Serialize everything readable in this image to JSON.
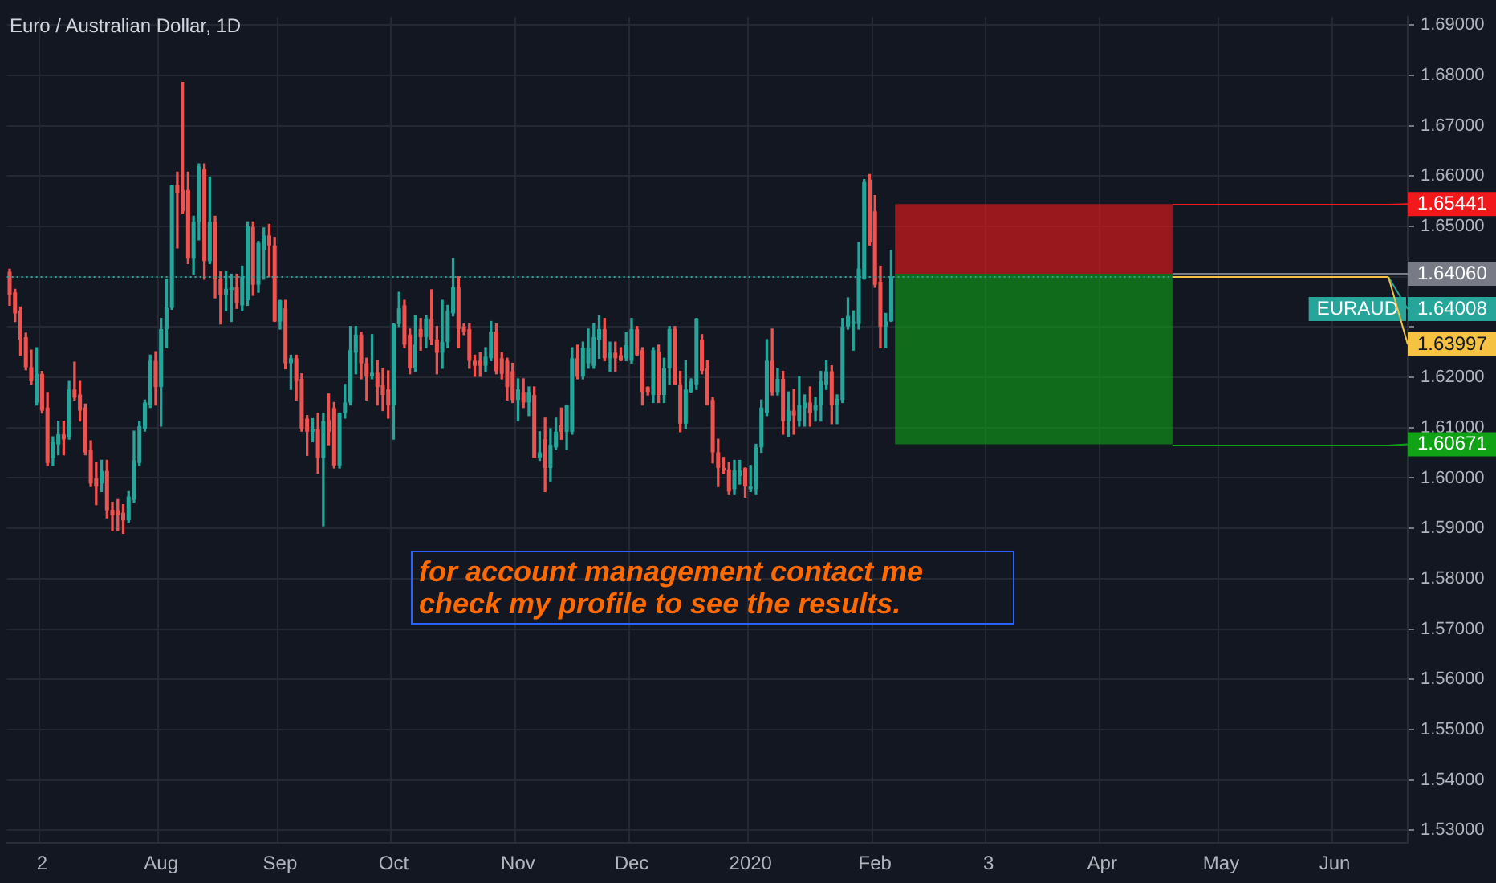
{
  "chart_data": {
    "type": "candlestick",
    "title": "Euro / Australian Dollar, 1D",
    "categories": [
      null,
      null,
      null,
      null,
      null,
      null,
      "2",
      null,
      null,
      null,
      null,
      null,
      null,
      null,
      null,
      null,
      null,
      null,
      null,
      null,
      null,
      null,
      null,
      null,
      null,
      null,
      null,
      null,
      "Aug",
      null,
      null,
      null,
      null,
      null,
      null,
      null,
      null,
      null,
      null,
      null,
      null,
      null,
      null,
      null,
      null,
      null,
      null,
      null,
      null,
      null,
      "Sep",
      null,
      null,
      null,
      null,
      null,
      null,
      null,
      null,
      null,
      null,
      null,
      null,
      null,
      null,
      null,
      null,
      null,
      null,
      null,
      null,
      "Oct",
      null,
      null,
      null,
      null,
      null,
      null,
      null,
      null,
      null,
      null,
      null,
      null,
      null,
      null,
      null,
      null,
      null,
      null,
      null,
      null,
      null,
      null,
      "Nov",
      null,
      null,
      null,
      null,
      null,
      null,
      null,
      null,
      null,
      null,
      null,
      null,
      null,
      null,
      null,
      null,
      null,
      null,
      null,
      null,
      "Dec",
      null,
      null,
      null,
      null,
      null,
      null,
      null,
      null,
      null,
      null,
      null,
      null,
      null,
      null,
      null,
      null,
      null,
      null,
      null,
      null,
      null,
      "2020",
      null,
      null,
      null,
      null,
      null,
      null,
      null,
      null,
      null,
      null,
      null,
      null,
      null,
      null,
      null,
      null,
      null,
      null,
      null,
      null,
      null,
      null,
      "Feb",
      null,
      null,
      null,
      null,
      null,
      null,
      null,
      null,
      null,
      null,
      null,
      null,
      null,
      null,
      null,
      null,
      null,
      null,
      null,
      null,
      "3",
      null,
      null,
      null,
      null,
      null,
      null,
      null,
      null,
      null,
      null,
      null,
      null,
      null,
      null,
      null,
      null,
      null,
      null,
      null,
      null,
      "Apr",
      null,
      null,
      null,
      null,
      null,
      null,
      null,
      null,
      null,
      null,
      null,
      null,
      null,
      null,
      null,
      null,
      null,
      null,
      null,
      null,
      null,
      "May",
      null,
      null,
      null,
      null,
      null,
      null,
      null,
      null,
      null,
      null,
      null,
      null,
      null,
      null,
      null,
      null,
      null,
      null,
      null,
      null,
      "Jun",
      null,
      null,
      null,
      null,
      null,
      null,
      null,
      null,
      null,
      null,
      null,
      null,
      null
    ],
    "ohlc": [
      [
        1.641,
        1.6415,
        1.6343,
        1.6364
      ],
      [
        1.6369,
        1.6375,
        1.6311,
        1.6327
      ],
      [
        1.6332,
        1.634,
        1.6244,
        1.6275
      ],
      [
        1.628,
        1.6288,
        1.6215,
        1.622
      ],
      [
        1.622,
        1.6254,
        1.6187,
        1.6192
      ],
      [
        1.615,
        1.6259,
        1.6145,
        1.6207
      ],
      [
        1.6207,
        1.6212,
        1.6129,
        1.6134
      ],
      [
        1.614,
        1.617,
        1.6025,
        1.603
      ],
      [
        1.604,
        1.6082,
        1.6025,
        1.6071
      ],
      [
        1.6067,
        1.6113,
        1.6046,
        1.6087
      ],
      [
        1.6087,
        1.6113,
        1.6046,
        1.6077
      ],
      [
        1.6082,
        1.6192,
        1.6077,
        1.6176
      ],
      [
        1.6176,
        1.623,
        1.6155,
        1.616
      ],
      [
        1.6166,
        1.6192,
        1.6113,
        1.6134
      ],
      [
        1.614,
        1.6147,
        1.6046,
        1.6051
      ],
      [
        1.6056,
        1.6074,
        1.5983,
        1.5989
      ],
      [
        1.5999,
        1.603,
        1.5947,
        1.5983
      ],
      [
        1.5989,
        1.6035,
        1.5973,
        1.6014
      ],
      [
        1.6014,
        1.6035,
        1.5921,
        1.5936
      ],
      [
        1.5937,
        1.5952,
        1.5895,
        1.5926
      ],
      [
        1.5936,
        1.5957,
        1.5895,
        1.5926
      ],
      [
        1.5931,
        1.5947,
        1.589,
        1.5916
      ],
      [
        1.5916,
        1.5973,
        1.5911,
        1.5963
      ],
      [
        1.5957,
        1.6093,
        1.5952,
        1.6035
      ],
      [
        1.603,
        1.6113,
        1.6025,
        1.6103
      ],
      [
        1.6098,
        1.6155,
        1.6093,
        1.615
      ],
      [
        1.6145,
        1.6244,
        1.614,
        1.6233
      ],
      [
        1.6233,
        1.6251,
        1.6145,
        1.6181
      ],
      [
        1.6181,
        1.6317,
        1.6103,
        1.6296
      ],
      [
        1.6296,
        1.6395,
        1.6259,
        1.6338
      ],
      [
        1.6338,
        1.6582,
        1.6335,
        1.6582
      ],
      [
        1.6582,
        1.6608,
        1.6457,
        1.6567
      ],
      [
        1.6572,
        1.6786,
        1.6525,
        1.653
      ],
      [
        1.6572,
        1.6608,
        1.6426,
        1.6436
      ],
      [
        1.6436,
        1.652,
        1.6405,
        1.6509
      ],
      [
        1.6509,
        1.6624,
        1.6473,
        1.6619
      ],
      [
        1.6614,
        1.6624,
        1.6395,
        1.6431
      ],
      [
        1.6431,
        1.6598,
        1.6426,
        1.6509
      ],
      [
        1.6509,
        1.652,
        1.6358,
        1.6395
      ],
      [
        1.6395,
        1.641,
        1.6306,
        1.6363
      ],
      [
        1.6363,
        1.641,
        1.6332,
        1.6376
      ],
      [
        1.6374,
        1.6405,
        1.6311,
        1.6379
      ],
      [
        1.6379,
        1.6405,
        1.6337,
        1.6348
      ],
      [
        1.6343,
        1.6421,
        1.6332,
        1.64
      ],
      [
        1.6353,
        1.6509,
        1.6343,
        1.65
      ],
      [
        1.6499,
        1.6509,
        1.6363,
        1.6384
      ],
      [
        1.6384,
        1.647,
        1.6369,
        1.6467
      ],
      [
        1.6452,
        1.6497,
        1.6395,
        1.6482
      ],
      [
        1.6482,
        1.6504,
        1.64,
        1.6462
      ],
      [
        1.6462,
        1.6478,
        1.6311,
        1.6311
      ],
      [
        1.6311,
        1.6353,
        1.6296,
        1.6353
      ],
      [
        1.6337,
        1.6353,
        1.6217,
        1.6228
      ],
      [
        1.6228,
        1.6244,
        1.6176,
        1.6238
      ],
      [
        1.6238,
        1.6244,
        1.6155,
        1.6192
      ],
      [
        1.6197,
        1.6207,
        1.6093,
        1.6098
      ],
      [
        1.6118,
        1.6124,
        1.6045,
        1.6092
      ],
      [
        1.6092,
        1.6118,
        1.6072,
        1.6097
      ],
      [
        1.6097,
        1.6129,
        1.6009,
        1.604
      ],
      [
        1.604,
        1.6129,
        1.5905,
        1.6113
      ],
      [
        1.6115,
        1.6167,
        1.6066,
        1.6092
      ],
      [
        1.6139,
        1.615,
        1.602,
        1.6025
      ],
      [
        1.6025,
        1.6129,
        1.602,
        1.6129
      ],
      [
        1.6129,
        1.6186,
        1.6119,
        1.615
      ],
      [
        1.615,
        1.6301,
        1.6145,
        1.6254
      ],
      [
        1.6249,
        1.6301,
        1.6207,
        1.6285
      ],
      [
        1.6285,
        1.629,
        1.6197,
        1.6228
      ],
      [
        1.6228,
        1.6238,
        1.6155,
        1.6202
      ],
      [
        1.6202,
        1.6285,
        1.6197,
        1.6209
      ],
      [
        1.6209,
        1.6233,
        1.6145,
        1.6181
      ],
      [
        1.6184,
        1.6218,
        1.6134,
        1.6165
      ],
      [
        1.6176,
        1.6213,
        1.6119,
        1.6145
      ],
      [
        1.6145,
        1.6306,
        1.6077,
        1.6306
      ],
      [
        1.6306,
        1.6369,
        1.6301,
        1.6337
      ],
      [
        1.6343,
        1.6353,
        1.6259,
        1.6265
      ],
      [
        1.6285,
        1.6296,
        1.6207,
        1.6218
      ],
      [
        1.6218,
        1.6322,
        1.6212,
        1.6265
      ],
      [
        1.6296,
        1.6317,
        1.6254,
        1.628
      ],
      [
        1.628,
        1.6322,
        1.6259,
        1.6317
      ],
      [
        1.6317,
        1.6374,
        1.6265,
        1.6275
      ],
      [
        1.6275,
        1.6301,
        1.6207,
        1.6249
      ],
      [
        1.6249,
        1.6353,
        1.6218,
        1.627
      ],
      [
        1.627,
        1.6343,
        1.6259,
        1.6332
      ],
      [
        1.6327,
        1.6436,
        1.6322,
        1.6379
      ],
      [
        1.6379,
        1.64,
        1.6259,
        1.6296
      ],
      [
        1.6301,
        1.6306,
        1.6285,
        1.629
      ],
      [
        1.6296,
        1.6306,
        1.6218,
        1.6233
      ],
      [
        1.6233,
        1.6244,
        1.6202,
        1.6223
      ],
      [
        1.6233,
        1.6249,
        1.6202,
        1.6223
      ],
      [
        1.6223,
        1.6259,
        1.6212,
        1.6241
      ],
      [
        1.6238,
        1.6311,
        1.6233,
        1.6291
      ],
      [
        1.6291,
        1.6306,
        1.6207,
        1.6212
      ],
      [
        1.6238,
        1.6249,
        1.6197,
        1.6207
      ],
      [
        1.6233,
        1.6238,
        1.6155,
        1.6181
      ],
      [
        1.6212,
        1.6228,
        1.615,
        1.6155
      ],
      [
        1.6155,
        1.6197,
        1.6114,
        1.6176
      ],
      [
        1.6171,
        1.6197,
        1.614,
        1.615
      ],
      [
        1.615,
        1.6181,
        1.6124,
        1.6171
      ],
      [
        1.6165,
        1.6181,
        1.604,
        1.604
      ],
      [
        1.604,
        1.6092,
        1.6035,
        1.6051
      ],
      [
        1.6077,
        1.6119,
        1.5973,
        1.602
      ],
      [
        1.602,
        1.6098,
        1.5994,
        1.6066
      ],
      [
        1.6061,
        1.6119,
        1.6056,
        1.6092
      ],
      [
        1.6105,
        1.6139,
        1.6077,
        1.6092
      ],
      [
        1.6092,
        1.6145,
        1.6056,
        1.6145
      ],
      [
        1.6092,
        1.6259,
        1.6087,
        1.6238
      ],
      [
        1.6238,
        1.6264,
        1.6197,
        1.6202
      ],
      [
        1.6202,
        1.627,
        1.6197,
        1.6259
      ],
      [
        1.6228,
        1.6296,
        1.6218,
        1.6259
      ],
      [
        1.6223,
        1.6306,
        1.6218,
        1.628
      ],
      [
        1.6275,
        1.6322,
        1.6238,
        1.6296
      ],
      [
        1.6296,
        1.6317,
        1.6233,
        1.6238
      ],
      [
        1.6238,
        1.627,
        1.6212,
        1.6249
      ],
      [
        1.6249,
        1.627,
        1.6212,
        1.6238
      ],
      [
        1.6244,
        1.6259,
        1.6233,
        1.6233
      ],
      [
        1.6238,
        1.629,
        1.6233,
        1.6264
      ],
      [
        1.6233,
        1.6317,
        1.6228,
        1.6296
      ],
      [
        1.6296,
        1.6301,
        1.6244,
        1.6244
      ],
      [
        1.6254,
        1.6259,
        1.6145,
        1.6171
      ],
      [
        1.6181,
        1.6181,
        1.6165,
        1.6171
      ],
      [
        1.6165,
        1.6259,
        1.615,
        1.6254
      ],
      [
        1.6251,
        1.6264,
        1.615,
        1.6165
      ],
      [
        1.6165,
        1.6238,
        1.615,
        1.6218
      ],
      [
        1.6218,
        1.6301,
        1.6186,
        1.6296
      ],
      [
        1.6296,
        1.6301,
        1.6186,
        1.6186
      ],
      [
        1.6186,
        1.6212,
        1.6092,
        1.6108
      ],
      [
        1.6108,
        1.6233,
        1.6098,
        1.6176
      ],
      [
        1.6171,
        1.6197,
        1.6171,
        1.6192
      ],
      [
        1.6186,
        1.6317,
        1.6176,
        1.6317
      ],
      [
        1.6275,
        1.6285,
        1.6207,
        1.6213
      ],
      [
        1.6218,
        1.6233,
        1.6145,
        1.6145
      ],
      [
        1.6155,
        1.616,
        1.603,
        1.6051
      ],
      [
        1.6051,
        1.6077,
        1.5983,
        1.602
      ],
      [
        1.602,
        1.6041,
        1.6009,
        1.6015
      ],
      [
        1.6017,
        1.603,
        1.5967,
        1.5973
      ],
      [
        1.5978,
        1.6035,
        1.5967,
        1.6015
      ],
      [
        1.6004,
        1.6035,
        1.5988,
        1.6015
      ],
      [
        1.602,
        1.602,
        1.5962,
        1.5983
      ],
      [
        1.5978,
        1.6025,
        1.5973,
        1.5983
      ],
      [
        1.5978,
        1.6067,
        1.5967,
        1.6061
      ],
      [
        1.6061,
        1.6155,
        1.6051,
        1.614
      ],
      [
        1.6129,
        1.6275,
        1.6124,
        1.6233
      ],
      [
        1.6233,
        1.6296,
        1.6165,
        1.6171
      ],
      [
        1.6171,
        1.6218,
        1.6165,
        1.6197
      ],
      [
        1.6197,
        1.6212,
        1.6087,
        1.6113
      ],
      [
        1.6113,
        1.6171,
        1.6082,
        1.6134
      ],
      [
        1.6134,
        1.6176,
        1.6087,
        1.6124
      ],
      [
        1.6113,
        1.6202,
        1.6103,
        1.6145
      ],
      [
        1.6139,
        1.6165,
        1.6103,
        1.615
      ],
      [
        1.615,
        1.6181,
        1.6103,
        1.6129
      ],
      [
        1.6134,
        1.616,
        1.6113,
        1.6145
      ],
      [
        1.6145,
        1.6212,
        1.6113,
        1.6192
      ],
      [
        1.6186,
        1.6233,
        1.6176,
        1.6212
      ],
      [
        1.6212,
        1.6223,
        1.6108,
        1.6145
      ],
      [
        1.6145,
        1.6165,
        1.6108,
        1.6157
      ],
      [
        1.6155,
        1.6317,
        1.615,
        1.6301
      ],
      [
        1.6301,
        1.6358,
        1.6296,
        1.6322
      ],
      [
        1.6306,
        1.6332,
        1.6254,
        1.6311
      ],
      [
        1.6306,
        1.6468,
        1.6296,
        1.6416
      ],
      [
        1.6395,
        1.6593,
        1.6395,
        1.6588
      ],
      [
        1.6593,
        1.6603,
        1.6463,
        1.6468
      ],
      [
        1.653,
        1.6561,
        1.6379,
        1.6384
      ],
      [
        1.639,
        1.6421,
        1.6259,
        1.6301
      ],
      [
        1.6301,
        1.6327,
        1.6259,
        1.6311
      ],
      [
        1.6311,
        1.6452,
        1.6311,
        1.64008
      ],
      null,
      null,
      null,
      null,
      null,
      null,
      null,
      null,
      null,
      null,
      null,
      null,
      null,
      null,
      null,
      null,
      null,
      null,
      null,
      null,
      null,
      null,
      null,
      null,
      null,
      null,
      null,
      null,
      null,
      null,
      null,
      null,
      null,
      null,
      null,
      null,
      null,
      null,
      null,
      null,
      null,
      null,
      null,
      null,
      null,
      null,
      null,
      null,
      null,
      null,
      null,
      null,
      null,
      null,
      null,
      null,
      null,
      null,
      null,
      null,
      null,
      null,
      null,
      null,
      null,
      null,
      null,
      null,
      null,
      null,
      null,
      null,
      null,
      null,
      null,
      null,
      null,
      null,
      null,
      null,
      null,
      null,
      null,
      null,
      null,
      null,
      null,
      null,
      null,
      null,
      null,
      null,
      null,
      null,
      null
    ],
    "ylim": [
      1.5275,
      1.6916
    ],
    "yticks": [
      {
        "value": 1.53,
        "label": "1.53000"
      },
      {
        "value": 1.54,
        "label": "1.54000"
      },
      {
        "value": 1.55,
        "label": "1.55000"
      },
      {
        "value": 1.56,
        "label": "1.56000"
      },
      {
        "value": 1.57,
        "label": "1.57000"
      },
      {
        "value": 1.58,
        "label": "1.58000"
      },
      {
        "value": 1.59,
        "label": "1.59000"
      },
      {
        "value": 1.6,
        "label": "1.60000"
      },
      {
        "value": 1.61,
        "label": "1.61000"
      },
      {
        "value": 1.62,
        "label": "1.62000"
      },
      {
        "value": 1.63,
        "label": null
      },
      {
        "value": 1.64,
        "label": null
      },
      {
        "value": 1.65,
        "label": "1.65000"
      },
      {
        "value": 1.66,
        "label": "1.66000"
      },
      {
        "value": 1.67,
        "label": "1.67000"
      },
      {
        "value": 1.68,
        "label": "1.68000"
      },
      {
        "value": 1.69,
        "label": "1.69000"
      }
    ],
    "grid": true,
    "bands": [
      {
        "axis": "y",
        "from": 1.6406,
        "to": 1.65441,
        "color": "#f2191c"
      },
      {
        "axis": "y",
        "from": 1.6406,
        "to": 1.60671,
        "color": "#0fa315"
      }
    ],
    "ref_lines": [
      {
        "axis": "y",
        "value": 1.65441,
        "color": "#f2191c",
        "line_style": "solid",
        "label": "1.65441"
      },
      {
        "axis": "y",
        "value": 1.6406,
        "color": "#787b86",
        "line_style": "solid",
        "label": "1.64060"
      },
      {
        "axis": "y",
        "value": 1.64008,
        "color": "#26a69a",
        "line_style": "dotted",
        "label": "1.64008"
      },
      {
        "axis": "y",
        "value": 1.63997,
        "color": "#f5c242",
        "line_style": "solid",
        "label": "1.63997"
      },
      {
        "axis": "y",
        "value": 1.60671,
        "color": "#0fa315",
        "line_style": "solid",
        "label": "1.60671"
      }
    ],
    "annotations": [
      "for account management contact me",
      "check my profile to see the results.",
      {
        "text": "EURAUD",
        "y": 1.64008
      }
    ]
  }
}
